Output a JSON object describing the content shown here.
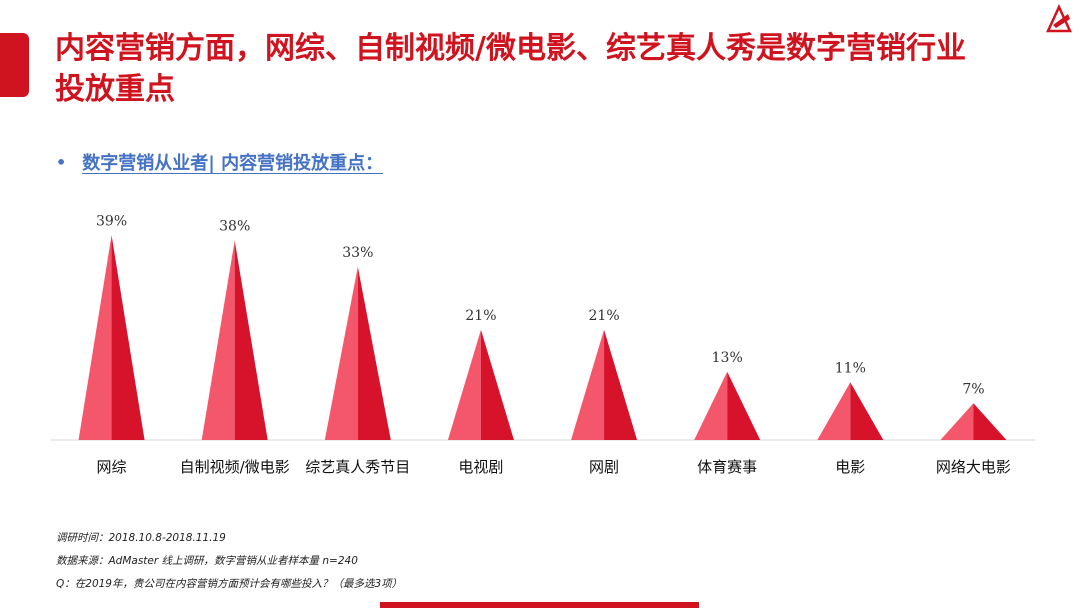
{
  "page": {
    "title": "内容营销方面，网综、自制视频/微电影、综艺真人秀是数字营销行业投放重点",
    "subtitle_bullet": "•",
    "subtitle": "数字营销从业者| 内容营销投放重点：",
    "notes": [
      "调研时间：2018.10.8-2018.11.19",
      "数据来源：AdMaster  线上调研，数字营销从业者样本量 n=240",
      "Q：在2019年，贵公司在内容营销方面预计会有哪些投入？（最多选3项）"
    ],
    "colors": {
      "accent": "#d0141f",
      "subtitle": "#4472c4",
      "cone_light": "#f4566c",
      "cone_dark": "#d7132c"
    }
  },
  "chart_data": {
    "type": "bar",
    "categories": [
      "网综",
      "自制视频/微电影",
      "综艺真人秀节目",
      "电视剧",
      "网剧",
      "体育赛事",
      "电影",
      "网络大电影"
    ],
    "values": [
      39,
      38,
      33,
      21,
      21,
      13,
      11,
      7
    ],
    "data_labels": [
      "39%",
      "38%",
      "33%",
      "21%",
      "21%",
      "13%",
      "11%",
      "7%"
    ],
    "title": "",
    "xlabel": "",
    "ylabel": "",
    "ylim": [
      0,
      40
    ],
    "grid": false,
    "legend": "none",
    "mark_shape": "cone"
  }
}
